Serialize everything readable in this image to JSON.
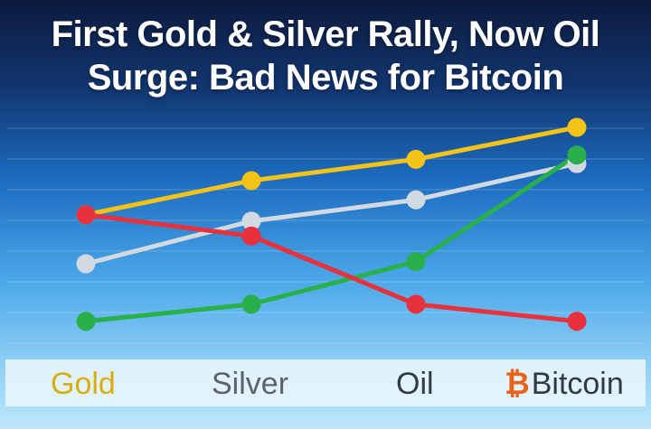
{
  "headline": {
    "line1": "First Gold & Silver Rally, Now Oil",
    "line2": "Surge: Bad News for Bitcoin"
  },
  "chart_data": {
    "type": "line",
    "x": [
      1,
      2,
      3,
      4
    ],
    "ylim": [
      0,
      100
    ],
    "grid": true,
    "legend_position": "bottom",
    "series": [
      {
        "name": "Gold",
        "color": "#f4c318",
        "values": [
          59,
          75,
          85,
          100
        ]
      },
      {
        "name": "Silver",
        "color": "#d3d9e0",
        "values": [
          36,
          56,
          66,
          83
        ]
      },
      {
        "name": "Oil",
        "color": "#29b04b",
        "values": [
          9,
          17,
          37,
          87
        ]
      },
      {
        "name": "Bitcoin",
        "color": "#e8313d",
        "values": [
          59,
          49,
          17,
          9
        ]
      }
    ]
  },
  "legend": {
    "gold": "Gold",
    "silver": "Silver",
    "oil": "Oil",
    "bitcoin_symbol": "₿",
    "bitcoin": "Bitcoin"
  }
}
